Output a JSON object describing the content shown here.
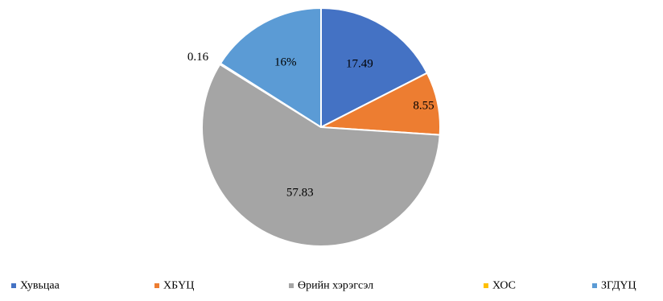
{
  "chart_data": {
    "type": "pie",
    "title": "",
    "categories": [
      "Хувьцаа",
      "ХБҮЦ",
      "Өрийн хэрэгсэл",
      "ХОС",
      "ЗГДҮЦ"
    ],
    "values": [
      17.49,
      8.55,
      57.83,
      0.16,
      16
    ],
    "data_labels": [
      "17.49",
      "8.55",
      "57.83",
      "0.16",
      "16%"
    ],
    "colors": [
      "#4472C4",
      "#ED7D31",
      "#A5A5A5",
      "#FFC000",
      "#5B9BD5"
    ],
    "legend_position": "bottom",
    "start_angle": "12 o'clock",
    "direction": "clockwise"
  }
}
